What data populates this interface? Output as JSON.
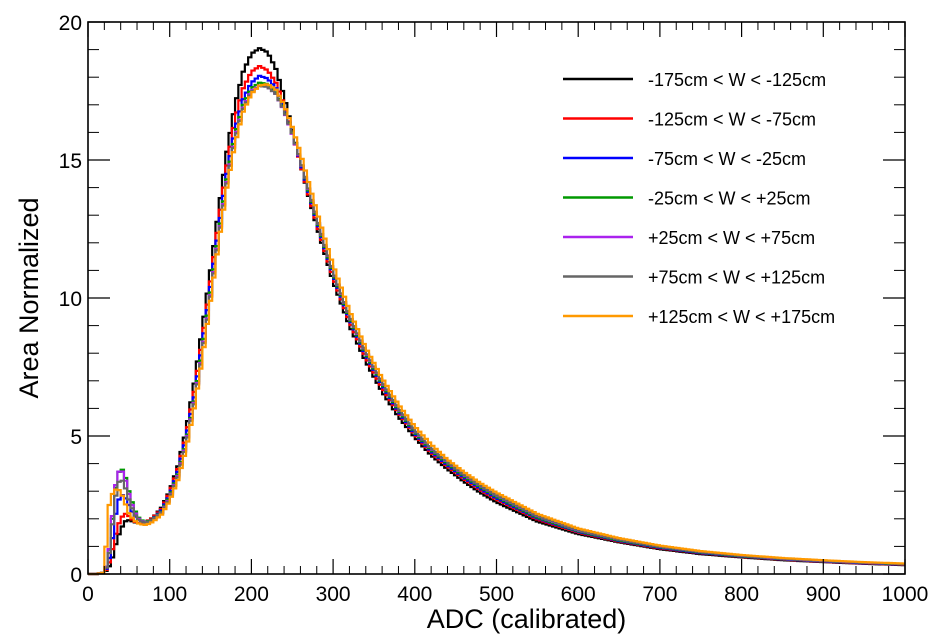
{
  "chart_data": {
    "type": "line",
    "style": "step-histogram",
    "title": "",
    "xlabel": "ADC (calibrated)",
    "ylabel": "Area Normalized",
    "xlim": [
      0,
      1000
    ],
    "ylim": [
      0,
      20
    ],
    "x_ticks": [
      0,
      100,
      200,
      300,
      400,
      500,
      600,
      700,
      800,
      900,
      1000
    ],
    "y_ticks": [
      0,
      5,
      10,
      15,
      20
    ],
    "x_tick_labels": [
      "0",
      "100",
      "200",
      "300",
      "400",
      "500",
      "600",
      "700",
      "800",
      "900",
      "1000"
    ],
    "y_tick_labels": [
      "0",
      "5",
      "10",
      "15",
      "20"
    ],
    "grid": false,
    "legend_position": "top-right",
    "x": [
      0,
      10,
      20,
      25,
      30,
      35,
      40,
      45,
      50,
      55,
      60,
      65,
      70,
      75,
      80,
      90,
      100,
      110,
      120,
      130,
      140,
      150,
      160,
      170,
      180,
      190,
      200,
      210,
      220,
      230,
      240,
      250,
      260,
      270,
      280,
      290,
      300,
      320,
      340,
      360,
      380,
      400,
      420,
      440,
      460,
      480,
      500,
      550,
      600,
      650,
      700,
      750,
      800,
      850,
      900,
      950,
      1000
    ],
    "series": [
      {
        "name": "-175cm < W < -125cm",
        "color": "#000000",
        "values": [
          0,
          0,
          0.05,
          0.2,
          0.6,
          1.2,
          1.6,
          1.9,
          1.95,
          1.9,
          1.85,
          1.85,
          1.9,
          1.95,
          2.05,
          2.4,
          3.0,
          3.9,
          5.2,
          6.9,
          8.9,
          11.0,
          13.2,
          15.3,
          17.0,
          18.2,
          18.85,
          19.05,
          18.9,
          18.3,
          17.3,
          16.1,
          14.9,
          13.7,
          12.6,
          11.6,
          10.6,
          9.0,
          7.7,
          6.6,
          5.7,
          4.95,
          4.3,
          3.8,
          3.35,
          2.95,
          2.6,
          1.9,
          1.45,
          1.15,
          0.9,
          0.72,
          0.6,
          0.5,
          0.43,
          0.37,
          0.32
        ]
      },
      {
        "name": "-125cm < W < -75cm",
        "color": "#ff0000",
        "values": [
          0,
          0,
          0.05,
          0.3,
          0.9,
          1.6,
          2.0,
          2.2,
          2.1,
          1.95,
          1.85,
          1.85,
          1.88,
          1.95,
          2.05,
          2.35,
          2.95,
          3.8,
          5.0,
          6.6,
          8.5,
          10.6,
          12.8,
          14.8,
          16.5,
          17.6,
          18.2,
          18.4,
          18.25,
          17.8,
          17.0,
          16.0,
          14.9,
          13.75,
          12.7,
          11.7,
          10.75,
          9.15,
          7.85,
          6.75,
          5.85,
          5.05,
          4.4,
          3.9,
          3.45,
          3.05,
          2.7,
          1.98,
          1.5,
          1.18,
          0.93,
          0.75,
          0.62,
          0.52,
          0.44,
          0.38,
          0.33
        ]
      },
      {
        "name": "-75cm < W < -25cm",
        "color": "#0000ff",
        "values": [
          0,
          0,
          0.05,
          0.4,
          1.3,
          2.4,
          2.9,
          2.8,
          2.5,
          2.2,
          2.0,
          1.9,
          1.88,
          1.92,
          2.0,
          2.3,
          2.85,
          3.7,
          4.9,
          6.4,
          8.3,
          10.4,
          12.5,
          14.5,
          16.1,
          17.2,
          17.8,
          18.05,
          17.95,
          17.6,
          16.9,
          16.0,
          14.95,
          13.85,
          12.8,
          11.8,
          10.85,
          9.25,
          7.95,
          6.85,
          5.9,
          5.1,
          4.45,
          3.95,
          3.5,
          3.1,
          2.75,
          2.02,
          1.53,
          1.2,
          0.95,
          0.76,
          0.63,
          0.53,
          0.45,
          0.39,
          0.34
        ]
      },
      {
        "name": "-25cm < W < +25cm",
        "color": "#009900",
        "values": [
          0,
          0,
          0.05,
          0.6,
          2.0,
          3.4,
          3.9,
          3.6,
          3.0,
          2.5,
          2.1,
          1.95,
          1.9,
          1.92,
          2.0,
          2.25,
          2.8,
          3.6,
          4.75,
          6.25,
          8.1,
          10.2,
          12.3,
          14.3,
          15.9,
          17.0,
          17.6,
          17.8,
          17.75,
          17.45,
          16.85,
          16.0,
          15.0,
          13.9,
          12.85,
          11.85,
          10.9,
          9.3,
          8.0,
          6.9,
          5.95,
          5.15,
          4.5,
          4.0,
          3.55,
          3.15,
          2.8,
          2.05,
          1.55,
          1.22,
          0.97,
          0.78,
          0.64,
          0.54,
          0.46,
          0.4,
          0.35
        ]
      },
      {
        "name": "+25cm < W < +75cm",
        "color": "#aa22ee",
        "values": [
          0,
          0,
          0.05,
          0.6,
          2.1,
          3.5,
          3.85,
          3.5,
          2.9,
          2.4,
          2.05,
          1.92,
          1.88,
          1.9,
          1.98,
          2.22,
          2.75,
          3.55,
          4.7,
          6.2,
          8.0,
          10.1,
          12.2,
          14.2,
          15.8,
          16.9,
          17.5,
          17.7,
          17.65,
          17.4,
          16.8,
          15.95,
          15.0,
          13.95,
          12.9,
          11.9,
          10.95,
          9.35,
          8.05,
          6.95,
          6.0,
          5.2,
          4.55,
          4.05,
          3.6,
          3.2,
          2.85,
          2.1,
          1.58,
          1.25,
          0.99,
          0.8,
          0.66,
          0.55,
          0.47,
          0.41,
          0.36
        ]
      },
      {
        "name": "+75cm < W < +125cm",
        "color": "#666666",
        "values": [
          0,
          0,
          0.05,
          0.5,
          1.8,
          3.1,
          3.5,
          3.2,
          2.7,
          2.3,
          2.0,
          1.9,
          1.86,
          1.9,
          1.98,
          2.2,
          2.72,
          3.5,
          4.65,
          6.15,
          7.95,
          10.05,
          12.15,
          14.15,
          15.75,
          16.85,
          17.45,
          17.68,
          17.65,
          17.4,
          16.82,
          15.98,
          15.02,
          13.97,
          12.92,
          11.92,
          10.97,
          9.37,
          8.07,
          6.97,
          6.02,
          5.22,
          4.57,
          4.07,
          3.62,
          3.22,
          2.87,
          2.12,
          1.6,
          1.26,
          1.0,
          0.81,
          0.67,
          0.56,
          0.48,
          0.42,
          0.36
        ]
      },
      {
        "name": "+125cm < W < +175cm",
        "color": "#ff9900",
        "values": [
          0,
          0,
          0.05,
          2.4,
          2.9,
          3.1,
          3.0,
          2.6,
          2.2,
          2.0,
          1.85,
          1.8,
          1.78,
          1.82,
          1.9,
          2.15,
          2.65,
          3.4,
          4.5,
          6.0,
          7.8,
          9.9,
          12.0,
          14.0,
          15.6,
          16.75,
          17.4,
          17.7,
          17.75,
          17.55,
          17.0,
          16.2,
          15.25,
          14.2,
          13.15,
          12.15,
          11.2,
          9.55,
          8.2,
          7.1,
          6.15,
          5.35,
          4.7,
          4.15,
          3.7,
          3.3,
          2.95,
          2.18,
          1.65,
          1.3,
          1.03,
          0.83,
          0.69,
          0.58,
          0.5,
          0.43,
          0.38
        ]
      }
    ]
  }
}
